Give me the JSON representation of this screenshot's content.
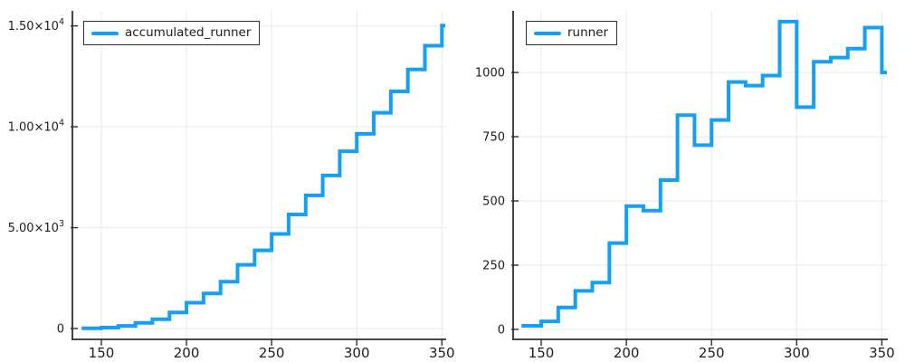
{
  "figure": {
    "background": "#ffffff",
    "text_color": "#1e1e1e",
    "grid_color": "#e9e9e9",
    "axis_color": "#2f2f2f"
  },
  "chart_data": [
    {
      "type": "line",
      "step": "post",
      "legend": "accumulated_runner",
      "legend_position": "top-left",
      "line_color": "#16a0f5",
      "line_width": 4,
      "grid": true,
      "x": [
        140,
        150,
        160,
        170,
        180,
        190,
        200,
        210,
        220,
        230,
        240,
        250,
        260,
        270,
        280,
        290,
        300,
        310,
        320,
        330,
        340,
        350
      ],
      "values": [
        14,
        45,
        130,
        280,
        462,
        798,
        1278,
        1740,
        2321,
        3155,
        3872,
        4687,
        5650,
        6599,
        7587,
        8785,
        9650,
        10692,
        11750,
        12843,
        14018,
        15018
      ],
      "xlim": [
        133,
        352.5
      ],
      "ylim": [
        -538,
        15745
      ],
      "xticks": [
        {
          "v": 150,
          "label": "150"
        },
        {
          "v": 200,
          "label": "200"
        },
        {
          "v": 250,
          "label": "250"
        },
        {
          "v": 300,
          "label": "300"
        },
        {
          "v": 350,
          "label": "350"
        }
      ],
      "yticks": [
        {
          "v": 0,
          "label": "0",
          "sup": ""
        },
        {
          "v": 5000,
          "label": "5.00×10",
          "sup": "3"
        },
        {
          "v": 10000,
          "label": "1.00×10",
          "sup": "4"
        },
        {
          "v": 15000,
          "label": "1.50×10",
          "sup": "4"
        }
      ]
    },
    {
      "type": "line",
      "step": "post",
      "legend": "runner",
      "legend_position": "top-left",
      "line_color": "#16a0f5",
      "line_width": 4,
      "grid": true,
      "x": [
        140,
        150,
        160,
        170,
        180,
        190,
        200,
        210,
        220,
        230,
        240,
        250,
        260,
        270,
        280,
        290,
        300,
        310,
        320,
        330,
        340,
        350
      ],
      "values": [
        14,
        31,
        85,
        150,
        182,
        336,
        480,
        462,
        581,
        834,
        717,
        815,
        963,
        949,
        988,
        1198,
        865,
        1042,
        1058,
        1093,
        1175,
        1000
      ],
      "xlim": [
        133.5,
        353.5
      ],
      "ylim": [
        -39,
        1240
      ],
      "xticks": [
        {
          "v": 150,
          "label": "150"
        },
        {
          "v": 200,
          "label": "200"
        },
        {
          "v": 250,
          "label": "250"
        },
        {
          "v": 300,
          "label": "300"
        },
        {
          "v": 350,
          "label": "350"
        }
      ],
      "yticks": [
        {
          "v": 0,
          "label": "0",
          "sup": ""
        },
        {
          "v": 250,
          "label": "250",
          "sup": ""
        },
        {
          "v": 500,
          "label": "500",
          "sup": ""
        },
        {
          "v": 750,
          "label": "750",
          "sup": ""
        },
        {
          "v": 1000,
          "label": "1000",
          "sup": ""
        }
      ]
    }
  ]
}
